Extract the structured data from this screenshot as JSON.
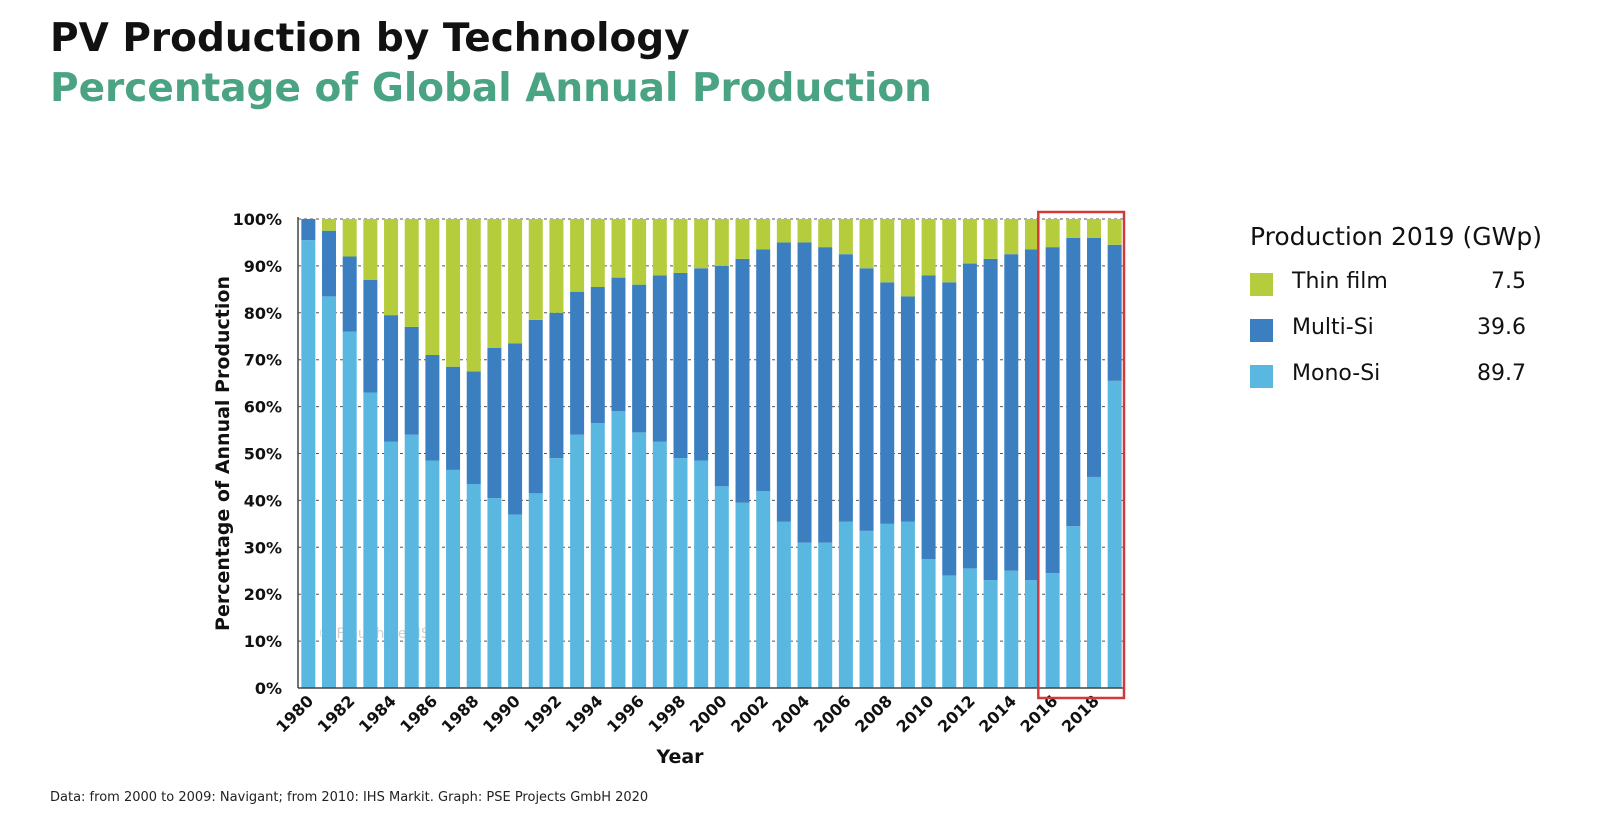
{
  "header": {
    "title": "PV Production by Technology",
    "subtitle": "Percentage of Global Annual Production"
  },
  "footnote": "Data: from 2000 to 2009: Navigant; from 2010: IHS Markit. Graph: PSE Projects GmbH 2020",
  "watermark": "© Fraunhofer ISE",
  "legend": {
    "title": "Production 2019 (GWp)",
    "items": [
      {
        "label": "Thin film",
        "value": "7.5",
        "color": "#b5cc3c"
      },
      {
        "label": "Multi-Si",
        "value": "39.6",
        "color": "#3c7fc1"
      },
      {
        "label": "Mono-Si",
        "value": "89.7",
        "color": "#5ab8e0"
      }
    ]
  },
  "colors": {
    "thin_film": "#b5cc3c",
    "multi_si": "#3c7fc1",
    "mono_si": "#5ab8e0",
    "highlight_box": "#d23a3a",
    "grid": "#555555"
  },
  "chart_data": {
    "type": "bar",
    "stacked": true,
    "xlabel": "Year",
    "ylabel": "Percentage of Annual Production",
    "ylim": [
      0,
      100
    ],
    "yticks": [
      "0%",
      "10%",
      "20%",
      "30%",
      "40%",
      "50%",
      "60%",
      "70%",
      "80%",
      "90%",
      "100%"
    ],
    "x_tick_labels": [
      "1980",
      "1982",
      "1984",
      "1986",
      "1988",
      "1990",
      "1992",
      "1994",
      "1996",
      "1998",
      "2000",
      "2002",
      "2004",
      "2006",
      "2008",
      "2010",
      "2012",
      "2014",
      "2016",
      "2018"
    ],
    "categories": [
      "1980",
      "1981",
      "1982",
      "1983",
      "1984",
      "1985",
      "1986",
      "1987",
      "1988",
      "1989",
      "1990",
      "1991",
      "1992",
      "1993",
      "1994",
      "1995",
      "1996",
      "1997",
      "1998",
      "1999",
      "2000",
      "2001",
      "2002",
      "2003",
      "2004",
      "2005",
      "2006",
      "2007",
      "2008",
      "2009",
      "2010",
      "2011",
      "2012",
      "2013",
      "2014",
      "2015",
      "2016",
      "2017",
      "2018",
      "2019"
    ],
    "series": [
      {
        "name": "Mono-Si",
        "values": [
          95.5,
          83.5,
          76,
          63,
          52.5,
          54,
          48.5,
          46.5,
          43.5,
          40.5,
          37,
          41.5,
          49,
          54,
          56.5,
          59,
          54.5,
          52.5,
          49,
          48.5,
          43,
          39.5,
          42,
          35.5,
          31,
          31,
          35.5,
          33.5,
          35,
          35.5,
          27.5,
          24,
          25.5,
          23,
          25,
          23,
          24.5,
          34.5,
          45,
          65.5
        ]
      },
      {
        "name": "Multi-Si",
        "values": [
          4.5,
          14,
          16,
          24,
          27,
          23,
          22.5,
          22,
          24,
          32,
          36.5,
          37,
          31,
          30.5,
          29,
          28.5,
          31.5,
          35.5,
          39.5,
          41,
          47,
          52,
          51.5,
          59.5,
          64,
          63,
          57,
          56,
          51.5,
          48,
          60.5,
          62.5,
          65,
          68.5,
          67.5,
          70.5,
          69.5,
          61.5,
          51,
          29
        ]
      },
      {
        "name": "Thin film",
        "values": [
          0,
          2.5,
          8,
          13,
          20.5,
          23,
          29,
          31.5,
          32.5,
          27.5,
          26.5,
          21.5,
          20,
          15.5,
          14.5,
          12.5,
          14,
          12,
          11.5,
          10.5,
          10,
          8.5,
          6.5,
          5,
          5,
          6,
          7.5,
          10.5,
          13.5,
          16.5,
          12,
          13.5,
          9.5,
          8.5,
          7.5,
          6.5,
          6,
          4,
          4,
          5.5
        ]
      }
    ],
    "highlight_years": [
      "2016",
      "2017",
      "2018",
      "2019"
    ],
    "grid": true,
    "legend_position": "right"
  }
}
